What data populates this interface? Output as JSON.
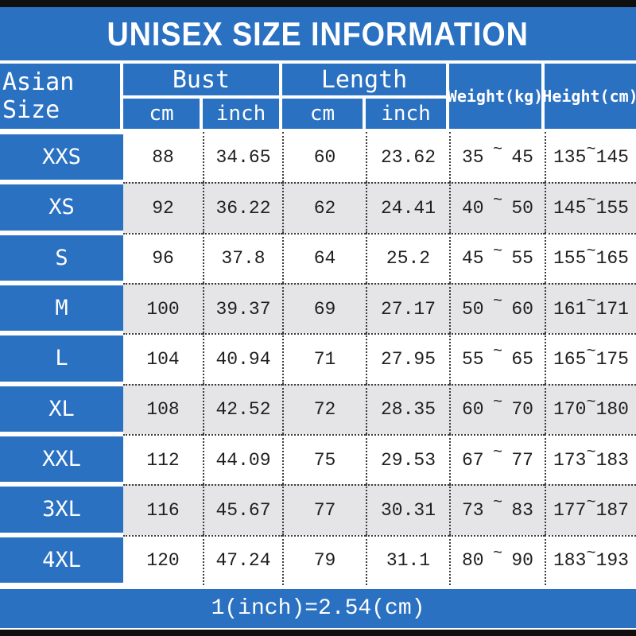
{
  "colors": {
    "blue": "#2b71c2",
    "row_alt_gray": "#e5e5e7",
    "bar_black": "#0f0f0f",
    "text_dark": "#1f1f1f",
    "header_text": "#ffffff"
  },
  "ui": {
    "title": "UNISEX SIZE INFORMATION",
    "header": {
      "size": "Asian Size",
      "bust": "Bust",
      "length": "Length",
      "cm": "cm",
      "inch": "inch",
      "weight": "Weight(kg)",
      "height": "Height(cm)",
      "tilde": "~"
    },
    "rows": [
      {
        "size": "XXS",
        "bust_cm": "88",
        "bust_inch": "34.65",
        "length_cm": "60",
        "length_inch": "23.62",
        "weight_min": "35",
        "weight_max": "45",
        "height_min": "135",
        "height_max": "145"
      },
      {
        "size": "XS",
        "bust_cm": "92",
        "bust_inch": "36.22",
        "length_cm": "62",
        "length_inch": "24.41",
        "weight_min": "40",
        "weight_max": "50",
        "height_min": "145",
        "height_max": "155"
      },
      {
        "size": "S",
        "bust_cm": "96",
        "bust_inch": "37.8",
        "length_cm": "64",
        "length_inch": "25.2",
        "weight_min": "45",
        "weight_max": "55",
        "height_min": "155",
        "height_max": "165"
      },
      {
        "size": "M",
        "bust_cm": "100",
        "bust_inch": "39.37",
        "length_cm": "69",
        "length_inch": "27.17",
        "weight_min": "50",
        "weight_max": "60",
        "height_min": "161",
        "height_max": "171"
      },
      {
        "size": "L",
        "bust_cm": "104",
        "bust_inch": "40.94",
        "length_cm": "71",
        "length_inch": "27.95",
        "weight_min": "55",
        "weight_max": "65",
        "height_min": "165",
        "height_max": "175"
      },
      {
        "size": "XL",
        "bust_cm": "108",
        "bust_inch": "42.52",
        "length_cm": "72",
        "length_inch": "28.35",
        "weight_min": "60",
        "weight_max": "70",
        "height_min": "170",
        "height_max": "180"
      },
      {
        "size": "XXL",
        "bust_cm": "112",
        "bust_inch": "44.09",
        "length_cm": "75",
        "length_inch": "29.53",
        "weight_min": "67",
        "weight_max": "77",
        "height_min": "173",
        "height_max": "183"
      },
      {
        "size": "3XL",
        "bust_cm": "116",
        "bust_inch": "45.67",
        "length_cm": "77",
        "length_inch": "30.31",
        "weight_min": "73",
        "weight_max": "83",
        "height_min": "177",
        "height_max": "187"
      },
      {
        "size": "4XL",
        "bust_cm": "120",
        "bust_inch": "47.24",
        "length_cm": "79",
        "length_inch": "31.1",
        "weight_min": "80",
        "weight_max": "90",
        "height_min": "183",
        "height_max": "193"
      }
    ],
    "footer_note": "1(inch)=2.54(cm)"
  },
  "chart_data": {
    "type": "table",
    "title": "UNISEX SIZE INFORMATION",
    "columns": [
      "Asian Size",
      "Bust cm",
      "Bust inch",
      "Length cm",
      "Length inch",
      "Weight(kg)",
      "Height(cm)"
    ],
    "rows": [
      [
        "XXS",
        88,
        34.65,
        60,
        23.62,
        "35~45",
        "135~145"
      ],
      [
        "XS",
        92,
        36.22,
        62,
        24.41,
        "40~50",
        "145~155"
      ],
      [
        "S",
        96,
        37.8,
        64,
        25.2,
        "45~55",
        "155~165"
      ],
      [
        "M",
        100,
        39.37,
        69,
        27.17,
        "50~60",
        "161~171"
      ],
      [
        "L",
        104,
        40.94,
        71,
        27.95,
        "55~65",
        "165~175"
      ],
      [
        "XL",
        108,
        42.52,
        72,
        28.35,
        "60~70",
        "170~180"
      ],
      [
        "XXL",
        112,
        44.09,
        75,
        29.53,
        "67~77",
        "173~183"
      ],
      [
        "3XL",
        116,
        45.67,
        77,
        30.31,
        "73~83",
        "177~187"
      ],
      [
        "4XL",
        120,
        47.24,
        79,
        31.1,
        "80~90",
        "183~193"
      ]
    ],
    "footnote": "1(inch)=2.54(cm)"
  }
}
